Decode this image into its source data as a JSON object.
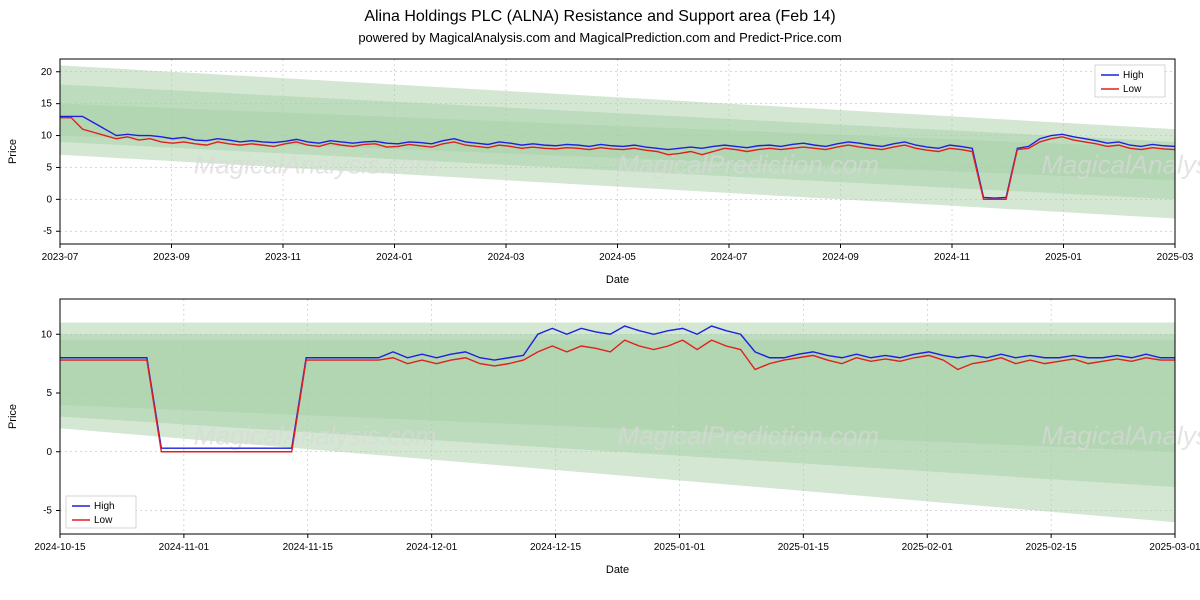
{
  "title": "Alina Holdings PLC (ALNA) Resistance and Support area (Feb 14)",
  "subtitle": "powered by MagicalAnalysis.com and MagicalPrediction.com and Predict-Price.com",
  "watermark_texts": [
    "MagicalAnalysis.com",
    "MagicalPrediction.com"
  ],
  "legend": {
    "high": "High",
    "low": "Low"
  },
  "colors": {
    "high_line": "#1f1fe0",
    "low_line": "#e01f1f",
    "band_fill": "#a8cfa8",
    "band_opacity": 0.5,
    "grid": "#b0b0b0",
    "background": "#ffffff"
  },
  "chart_top": {
    "type": "line",
    "xlabel": "Date",
    "ylabel": "Price",
    "ylim": [
      -7,
      22
    ],
    "yticks": [
      -5,
      0,
      5,
      10,
      15,
      20
    ],
    "xticks": [
      "2023-07",
      "2023-09",
      "2023-11",
      "2024-01",
      "2024-03",
      "2024-05",
      "2024-07",
      "2024-09",
      "2024-11",
      "2025-01",
      "2025-03"
    ],
    "x_index_range": [
      0,
      100
    ],
    "bands": [
      {
        "y_top_start": 21,
        "y_top_end": 11,
        "y_bot_start": 7,
        "y_bot_end": -3
      },
      {
        "y_top_start": 18,
        "y_top_end": 9,
        "y_bot_start": 9,
        "y_bot_end": 0
      },
      {
        "y_top_start": 15,
        "y_top_end": 8,
        "y_bot_start": 10,
        "y_bot_end": 3
      }
    ],
    "high": [
      13,
      13,
      13,
      12,
      11,
      10,
      10.2,
      10,
      10,
      9.8,
      9.5,
      9.7,
      9.3,
      9.2,
      9.5,
      9.3,
      9,
      9.2,
      9,
      8.9,
      9.1,
      9.4,
      9,
      8.8,
      9.2,
      9,
      8.8,
      9,
      9.1,
      8.8,
      8.7,
      9,
      8.9,
      8.7,
      9.2,
      9.5,
      9,
      8.8,
      8.6,
      9,
      8.8,
      8.5,
      8.7,
      8.5,
      8.4,
      8.6,
      8.5,
      8.3,
      8.6,
      8.4,
      8.3,
      8.5,
      8.2,
      8,
      7.8,
      8,
      8.2,
      8,
      8.3,
      8.5,
      8.3,
      8.1,
      8.4,
      8.5,
      8.3,
      8.6,
      8.8,
      8.5,
      8.3,
      8.7,
      9,
      8.8,
      8.5,
      8.3,
      8.7,
      9,
      8.5,
      8.2,
      8,
      8.5,
      8.3,
      8,
      0.3,
      0.2,
      0.3,
      8,
      8.3,
      9.5,
      10,
      10.2,
      9.8,
      9.5,
      9.2,
      8.8,
      9,
      8.5,
      8.3,
      8.6,
      8.4,
      8.3
    ],
    "low": [
      12.8,
      12.8,
      11,
      10.5,
      10,
      9.5,
      9.8,
      9.3,
      9.5,
      9,
      8.8,
      9,
      8.7,
      8.5,
      9,
      8.7,
      8.5,
      8.7,
      8.5,
      8.3,
      8.7,
      9,
      8.5,
      8.3,
      8.8,
      8.5,
      8.3,
      8.6,
      8.7,
      8.2,
      8.3,
      8.6,
      8.4,
      8.2,
      8.7,
      9,
      8.5,
      8.3,
      8.1,
      8.5,
      8.3,
      8,
      8.2,
      8,
      7.9,
      8.1,
      8,
      7.8,
      8.1,
      7.9,
      7.8,
      8,
      7.7,
      7.5,
      7,
      7.2,
      7.5,
      7,
      7.5,
      8,
      7.8,
      7.5,
      7.8,
      8,
      7.8,
      8,
      8.2,
      8,
      7.8,
      8.2,
      8.5,
      8.2,
      8,
      7.8,
      8.2,
      8.5,
      8,
      7.7,
      7.5,
      8,
      7.8,
      7.5,
      0,
      0,
      0,
      7.8,
      8,
      9,
      9.5,
      9.8,
      9.3,
      9,
      8.7,
      8.3,
      8.5,
      8,
      7.8,
      8.1,
      7.9,
      7.8
    ]
  },
  "chart_bottom": {
    "type": "line",
    "xlabel": "Date",
    "ylabel": "Price",
    "ylim": [
      -7,
      13
    ],
    "yticks": [
      -5,
      0,
      5,
      10
    ],
    "xticks": [
      "2024-10-15",
      "2024-11-01",
      "2024-11-15",
      "2024-12-01",
      "2024-12-15",
      "2025-01-01",
      "2025-01-15",
      "2025-02-01",
      "2025-02-15",
      "2025-03-01"
    ],
    "x_index_range": [
      0,
      90
    ],
    "bands": [
      {
        "y_top_start": 11,
        "y_top_end": 11,
        "y_bot_start": 2,
        "y_bot_end": -6
      },
      {
        "y_top_start": 10,
        "y_top_end": 10,
        "y_bot_start": 3,
        "y_bot_end": -3
      },
      {
        "y_top_start": 9.5,
        "y_top_end": 9.5,
        "y_bot_start": 4,
        "y_bot_end": 0
      }
    ],
    "high": [
      8,
      8,
      8,
      8,
      8,
      8,
      8,
      0.3,
      0.3,
      0.3,
      0.3,
      0.3,
      0.3,
      0.3,
      0.3,
      0.3,
      0.3,
      8,
      8,
      8,
      8,
      8,
      8,
      8.5,
      8,
      8.3,
      8,
      8.3,
      8.5,
      8,
      7.8,
      8,
      8.2,
      10,
      10.5,
      10,
      10.5,
      10.2,
      10,
      10.7,
      10.3,
      10,
      10.3,
      10.5,
      10,
      10.7,
      10.3,
      10,
      8.5,
      8,
      8,
      8.3,
      8.5,
      8.2,
      8,
      8.3,
      8,
      8.2,
      8,
      8.3,
      8.5,
      8.2,
      8,
      8.2,
      8,
      8.3,
      8,
      8.2,
      8,
      8,
      8.2,
      8,
      8,
      8.2,
      8,
      8.3,
      8,
      8
    ],
    "low": [
      7.8,
      7.8,
      7.8,
      7.8,
      7.8,
      7.8,
      7.8,
      0,
      0,
      0,
      0,
      0,
      0,
      0,
      0,
      0,
      0,
      7.8,
      7.8,
      7.8,
      7.8,
      7.8,
      7.8,
      8,
      7.5,
      7.8,
      7.5,
      7.8,
      8,
      7.5,
      7.3,
      7.5,
      7.8,
      8.5,
      9,
      8.5,
      9,
      8.8,
      8.5,
      9.5,
      9,
      8.7,
      9,
      9.5,
      8.7,
      9.5,
      9,
      8.7,
      7,
      7.5,
      7.8,
      8,
      8.2,
      7.8,
      7.5,
      8,
      7.7,
      7.9,
      7.7,
      8,
      8.2,
      7.8,
      7,
      7.5,
      7.7,
      8,
      7.5,
      7.8,
      7.5,
      7.7,
      7.9,
      7.5,
      7.7,
      7.9,
      7.7,
      8,
      7.8,
      7.8
    ]
  }
}
